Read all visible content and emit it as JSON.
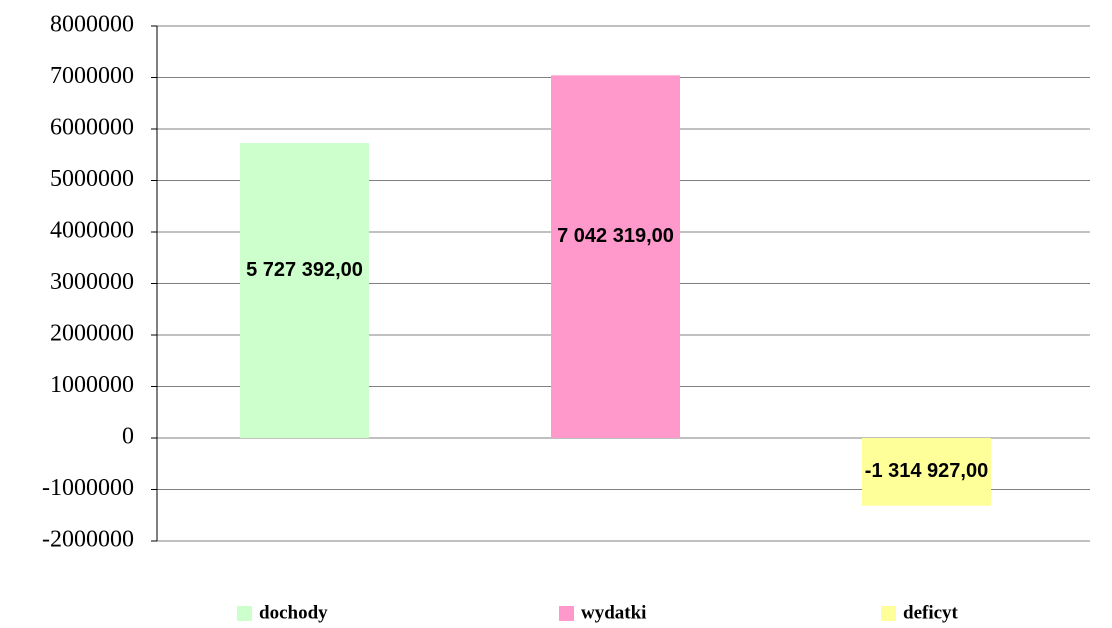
{
  "chart_data": {
    "type": "bar",
    "categories": [
      null
    ],
    "series": [
      {
        "name": "dochody",
        "color": "#ccffcc",
        "values": [
          5727392
        ],
        "value_labels": [
          "5 727 392,00"
        ]
      },
      {
        "name": "wydatki",
        "color": "#ff99cc",
        "values": [
          7042319
        ],
        "value_labels": [
          "7 042 319,00"
        ]
      },
      {
        "name": "deficyt",
        "color": "#ffff99",
        "values": [
          -1314927
        ],
        "value_labels": [
          "-1 314 927,00"
        ]
      }
    ],
    "ylim": [
      -2000000,
      8000000
    ],
    "yticks": [
      -2000000,
      -1000000,
      0,
      1000000,
      2000000,
      3000000,
      4000000,
      5000000,
      6000000,
      7000000,
      8000000
    ],
    "grid": true,
    "legend": "bottom"
  }
}
